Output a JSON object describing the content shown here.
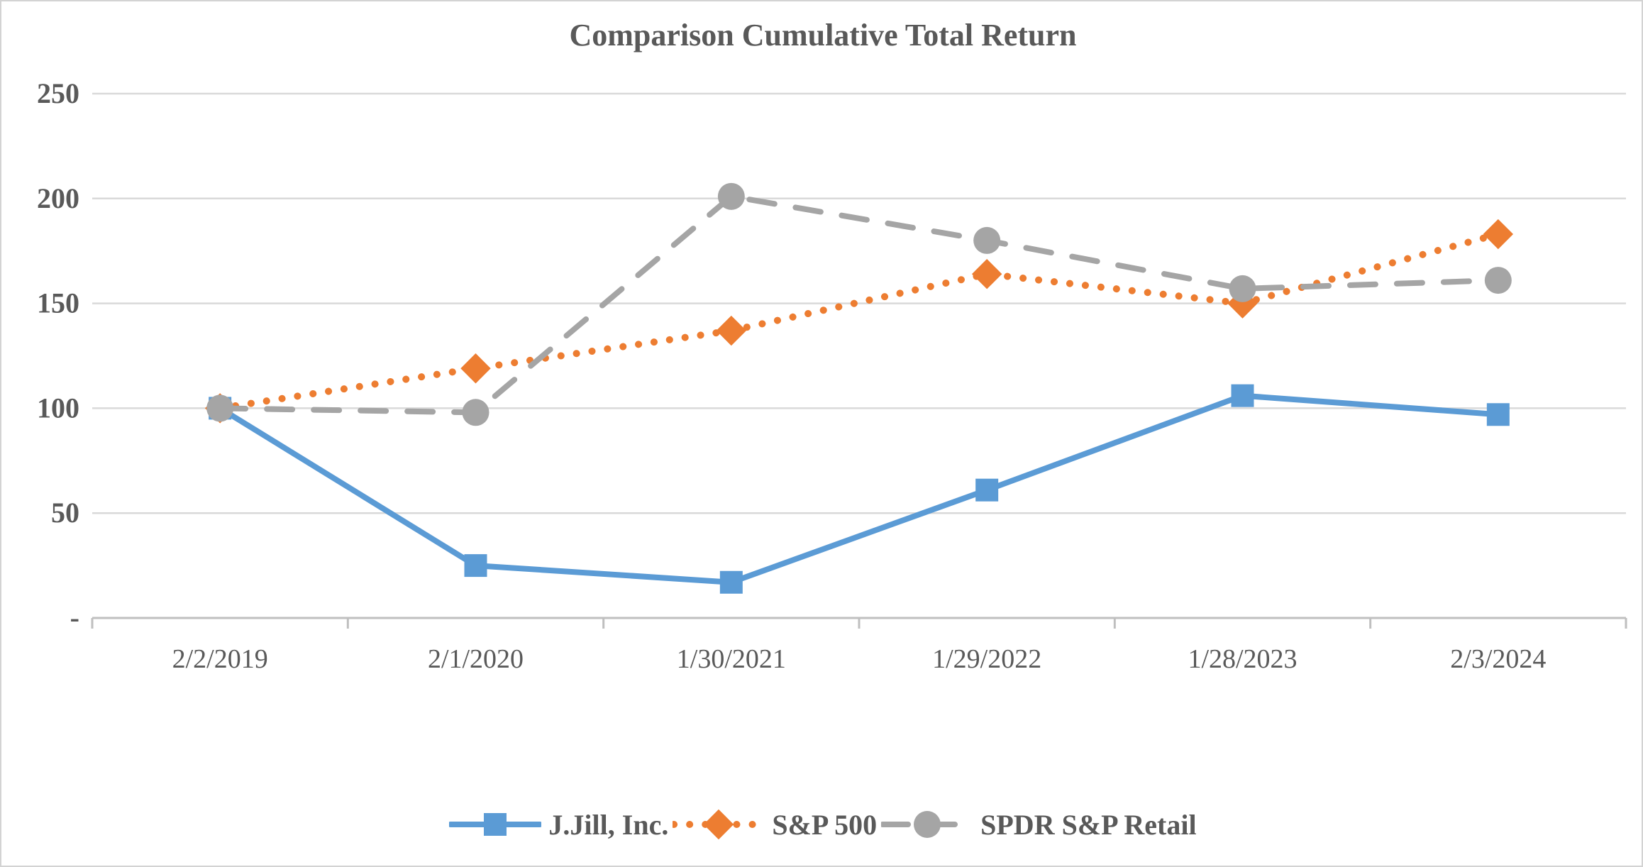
{
  "title": "Comparison Cumulative Total Return",
  "colors": {
    "text": "#595959",
    "gridline": "#d9d9d9",
    "axis_line": "#bfbfbf",
    "background": "#ffffff",
    "jjill_blue": "#5B9BD5",
    "sp500_orange": "#ED7D31",
    "spdr_gray": "#A5A5A5"
  },
  "chart_data": {
    "type": "line",
    "title": "Comparison Cumulative Total Return",
    "categories": [
      "2/2/2019",
      "2/1/2020",
      "1/30/2021",
      "1/29/2022",
      "1/28/2023",
      "2/3/2024"
    ],
    "series": [
      {
        "name": "J.Jill, Inc.",
        "color": "#5B9BD5",
        "marker": "square",
        "line_style": "solid",
        "values": [
          100,
          25,
          17,
          61,
          106,
          97
        ]
      },
      {
        "name": "S&P 500",
        "color": "#ED7D31",
        "marker": "diamond",
        "line_style": "dotted",
        "values": [
          100,
          119,
          137,
          164,
          150,
          183
        ]
      },
      {
        "name": "SPDR S&P Retail",
        "color": "#A5A5A5",
        "marker": "circle",
        "line_style": "dashed",
        "values": [
          100,
          98,
          201,
          180,
          157,
          161
        ]
      }
    ],
    "y_ticks": [
      {
        "value": 0,
        "label": "-"
      },
      {
        "value": 50,
        "label": "50"
      },
      {
        "value": 100,
        "label": "100"
      },
      {
        "value": 150,
        "label": "150"
      },
      {
        "value": 200,
        "label": "200"
      },
      {
        "value": 250,
        "label": "250"
      }
    ],
    "ylim": [
      0,
      250
    ],
    "xlabel": "",
    "ylabel": "",
    "grid": true,
    "legend_position": "bottom"
  }
}
